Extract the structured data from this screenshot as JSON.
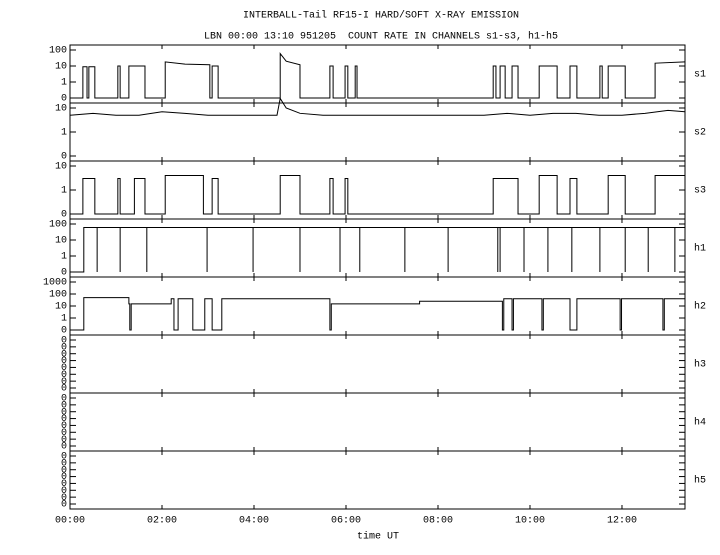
{
  "chart_data": {
    "type": "line",
    "title": "INTERBALL-Tail RF15-I HARD/SOFT X-RAY EMISSION",
    "subtitle": "LBN 00:00 13:10 951205  COUNT RATE IN CHANNELS s1-s3, h1-h5",
    "xlabel": "time UT",
    "xlim": [
      0,
      13.37
    ],
    "xticks": [
      {
        "value": 0,
        "label": "00:00"
      },
      {
        "value": 2,
        "label": "02:00"
      },
      {
        "value": 4,
        "label": "04:00"
      },
      {
        "value": 6,
        "label": "06:00"
      },
      {
        "value": 8,
        "label": "08:00"
      },
      {
        "value": 10,
        "label": "10:00"
      },
      {
        "value": 12,
        "label": "12:00"
      }
    ],
    "grid": false,
    "series": [
      {
        "name": "s1",
        "color": "#000000",
        "yscale": "log",
        "ylim": [
          0,
          100
        ],
        "yticks": [
          0,
          1,
          10,
          100
        ],
        "x": [
          0,
          0.28,
          0.28,
          0.37,
          0.37,
          0.41,
          0.41,
          0.54,
          0.54,
          1.04,
          1.04,
          1.09,
          1.09,
          1.28,
          1.28,
          1.63,
          1.63,
          2.07,
          2.07,
          2.5,
          3.04,
          3.04,
          3.09,
          3.09,
          3.22,
          3.22,
          4.57,
          4.57,
          4.7,
          5.0,
          5.0,
          5.65,
          5.65,
          5.72,
          5.72,
          5.98,
          5.98,
          6.04,
          6.04,
          6.2,
          6.2,
          6.24,
          6.24,
          9.2,
          9.2,
          9.26,
          9.26,
          9.35,
          9.35,
          9.46,
          9.46,
          9.61,
          9.61,
          9.74,
          9.74,
          10.2,
          10.2,
          10.59,
          10.59,
          10.87,
          10.87,
          11.02,
          11.02,
          11.52,
          11.52,
          11.57,
          11.57,
          11.7,
          11.7,
          12.07,
          12.07,
          12.72,
          12.72,
          13.37
        ],
        "values": [
          0,
          0,
          9,
          9,
          0,
          0,
          9,
          9,
          0,
          0,
          10,
          10,
          0,
          0,
          10,
          10,
          0,
          0,
          18,
          13,
          12,
          0,
          0,
          10,
          10,
          0,
          0,
          60,
          20,
          12,
          0,
          0,
          10,
          10,
          0,
          0,
          10,
          10,
          0,
          0,
          10,
          10,
          0,
          0,
          10,
          10,
          0,
          0,
          10,
          10,
          0,
          0,
          10,
          10,
          0,
          0,
          10,
          10,
          0,
          0,
          10,
          10,
          0,
          0,
          10,
          10,
          0,
          0,
          10,
          10,
          0,
          0,
          15,
          18
        ]
      },
      {
        "name": "s2",
        "color": "#000000",
        "yscale": "log",
        "ylim": [
          0,
          10
        ],
        "yticks": [
          0,
          1,
          10
        ],
        "x": [
          0,
          0.5,
          1,
          1.5,
          2,
          2.5,
          3,
          3.5,
          4,
          4.5,
          4.57,
          4.7,
          5,
          5.5,
          6,
          6.5,
          7,
          7.5,
          8,
          8.5,
          9,
          9.5,
          10,
          10.5,
          11,
          11.5,
          12,
          12.5,
          13,
          13.37
        ],
        "values": [
          5,
          6,
          5,
          5,
          7,
          6,
          5,
          5,
          5,
          5,
          25,
          10,
          6,
          5,
          5,
          5,
          5,
          5,
          5,
          5,
          5,
          6,
          5,
          6,
          6,
          5,
          5,
          6,
          8,
          7
        ]
      },
      {
        "name": "s3",
        "color": "#000000",
        "yscale": "log",
        "ylim": [
          0,
          10
        ],
        "yticks": [
          0,
          1,
          10
        ],
        "x": [
          0,
          0.28,
          0.28,
          0.54,
          0.54,
          1.04,
          1.04,
          1.09,
          1.09,
          1.4,
          1.4,
          1.63,
          1.63,
          2.07,
          2.07,
          2.9,
          2.9,
          3.09,
          3.09,
          3.22,
          3.22,
          4.57,
          4.57,
          5.0,
          5.0,
          5.65,
          5.65,
          5.72,
          5.72,
          5.98,
          5.98,
          6.04,
          6.04,
          9.2,
          9.2,
          9.74,
          9.74,
          10.2,
          10.2,
          10.59,
          10.59,
          10.87,
          10.87,
          11.02,
          11.02,
          11.7,
          11.7,
          12.07,
          12.07,
          12.72,
          12.72,
          13.37
        ],
        "values": [
          0,
          0,
          3,
          3,
          0,
          0,
          3,
          3,
          0,
          0,
          3,
          3,
          0,
          0,
          4,
          4,
          0,
          0,
          3,
          3,
          0,
          0,
          4,
          4,
          0,
          0,
          3,
          3,
          0,
          0,
          3,
          3,
          0,
          0,
          3,
          3,
          0,
          0,
          4,
          4,
          0,
          0,
          3,
          3,
          0,
          0,
          4,
          4,
          0,
          0,
          4,
          4
        ]
      },
      {
        "name": "h1",
        "color": "#000000",
        "yscale": "log",
        "ylim": [
          0,
          100
        ],
        "yticks": [
          0,
          1,
          10,
          100
        ],
        "x": [
          0,
          0.3,
          0.3,
          0.59,
          0.59,
          0.59,
          1.09,
          1.09,
          1.09,
          1.67,
          1.67,
          1.67,
          2.98,
          2.98,
          2.98,
          3.98,
          3.98,
          3.98,
          5.0,
          5.0,
          5.0,
          5.87,
          5.87,
          5.87,
          6.3,
          6.3,
          6.3,
          7.28,
          7.28,
          7.28,
          8.22,
          8.22,
          8.22,
          9.3,
          9.3,
          9.3,
          9.35,
          9.35,
          9.35,
          9.87,
          9.87,
          9.87,
          10.39,
          10.39,
          10.39,
          10.91,
          10.91,
          10.91,
          11.52,
          11.52,
          11.52,
          12.07,
          12.07,
          12.07,
          12.57,
          12.57,
          12.57,
          13.15,
          13.15,
          13.15,
          13.37
        ],
        "values": [
          0,
          0,
          60,
          60,
          0,
          60,
          60,
          0,
          60,
          60,
          0,
          60,
          60,
          0,
          60,
          60,
          0,
          60,
          60,
          0,
          60,
          60,
          0,
          60,
          60,
          0,
          60,
          60,
          0,
          60,
          60,
          0,
          60,
          60,
          0,
          60,
          60,
          0,
          60,
          60,
          0,
          60,
          60,
          0,
          60,
          60,
          0,
          60,
          60,
          0,
          60,
          60,
          0,
          60,
          60,
          0,
          60,
          60,
          0,
          60,
          60
        ]
      },
      {
        "name": "h2",
        "color": "#000000",
        "yscale": "log",
        "ylim": [
          0,
          1000
        ],
        "yticks": [
          0,
          1,
          10,
          100,
          1000
        ],
        "x": [
          0,
          0.3,
          0.3,
          1.28,
          1.28,
          1.3,
          1.3,
          1.33,
          1.33,
          2.2,
          2.2,
          2.26,
          2.26,
          2.35,
          2.35,
          2.67,
          2.67,
          2.93,
          2.93,
          3.09,
          3.09,
          3.3,
          3.3,
          5.65,
          5.65,
          5.68,
          5.68,
          7.6,
          7.6,
          9.4,
          9.4,
          9.43,
          9.43,
          9.61,
          9.61,
          9.64,
          9.64,
          10.26,
          10.26,
          10.29,
          10.29,
          10.87,
          10.87,
          11.02,
          11.02,
          11.96,
          11.96,
          11.99,
          11.99,
          12.89,
          12.89,
          12.92,
          12.92,
          13.37
        ],
        "values": [
          0,
          0,
          50,
          50,
          15,
          15,
          0,
          0,
          15,
          15,
          40,
          40,
          0,
          0,
          40,
          40,
          0,
          0,
          40,
          40,
          0,
          0,
          40,
          40,
          0,
          0,
          15,
          15,
          25,
          25,
          0,
          0,
          40,
          40,
          0,
          0,
          40,
          40,
          0,
          0,
          40,
          40,
          0,
          0,
          40,
          40,
          0,
          0,
          40,
          40,
          0,
          0,
          40,
          40
        ]
      },
      {
        "name": "h3",
        "color": "#000000",
        "yscale": "linear",
        "ylim": [
          0,
          7
        ],
        "yticks": [
          {
            "value": 0,
            "label": "0"
          },
          {
            "value": 1,
            "label": "0"
          },
          {
            "value": 2,
            "label": "0"
          },
          {
            "value": 3,
            "label": "0"
          },
          {
            "value": 4,
            "label": "0"
          },
          {
            "value": 5,
            "label": "0"
          },
          {
            "value": 6,
            "label": "0"
          },
          {
            "value": 7,
            "label": "0"
          }
        ],
        "x": [],
        "values": []
      },
      {
        "name": "h4",
        "color": "#000000",
        "yscale": "linear",
        "ylim": [
          0,
          7
        ],
        "yticks": [
          {
            "value": 0,
            "label": "0"
          },
          {
            "value": 1,
            "label": "0"
          },
          {
            "value": 2,
            "label": "0"
          },
          {
            "value": 3,
            "label": "0"
          },
          {
            "value": 4,
            "label": "0"
          },
          {
            "value": 5,
            "label": "0"
          },
          {
            "value": 6,
            "label": "0"
          },
          {
            "value": 7,
            "label": "0"
          }
        ],
        "x": [],
        "values": []
      },
      {
        "name": "h5",
        "color": "#000000",
        "yscale": "linear",
        "ylim": [
          0,
          7
        ],
        "yticks": [
          {
            "value": 0,
            "label": "0"
          },
          {
            "value": 1,
            "label": "0"
          },
          {
            "value": 2,
            "label": "0"
          },
          {
            "value": 3,
            "label": "0"
          },
          {
            "value": 4,
            "label": "0"
          },
          {
            "value": 5,
            "label": "0"
          },
          {
            "value": 6,
            "label": "0"
          },
          {
            "value": 7,
            "label": "0"
          }
        ],
        "x": [],
        "values": []
      }
    ]
  }
}
